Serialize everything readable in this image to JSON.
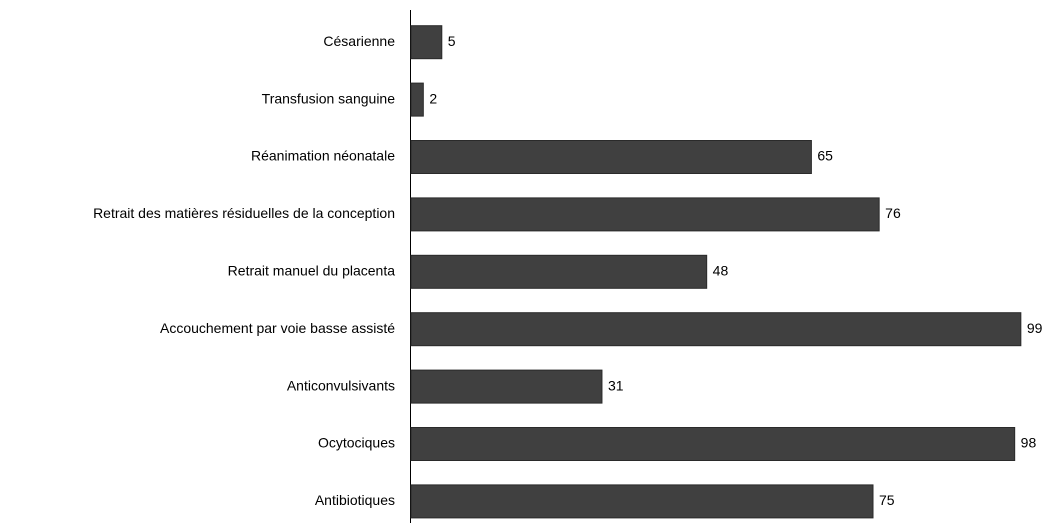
{
  "chart_data": {
    "type": "bar",
    "orientation": "horizontal",
    "categories": [
      "Césarienne",
      "Transfusion sanguine",
      "Réanimation néonatale",
      "Retrait des matières résiduelles de la conception",
      "Retrait manuel du placenta",
      "Accouchement par voie basse assisté",
      "Anticonvulsivants",
      "Ocytociques",
      "Antibiotiques"
    ],
    "values": [
      5,
      2,
      65,
      76,
      48,
      99,
      31,
      98,
      75
    ],
    "color": "#404040",
    "xlim": [
      0,
      100
    ]
  }
}
